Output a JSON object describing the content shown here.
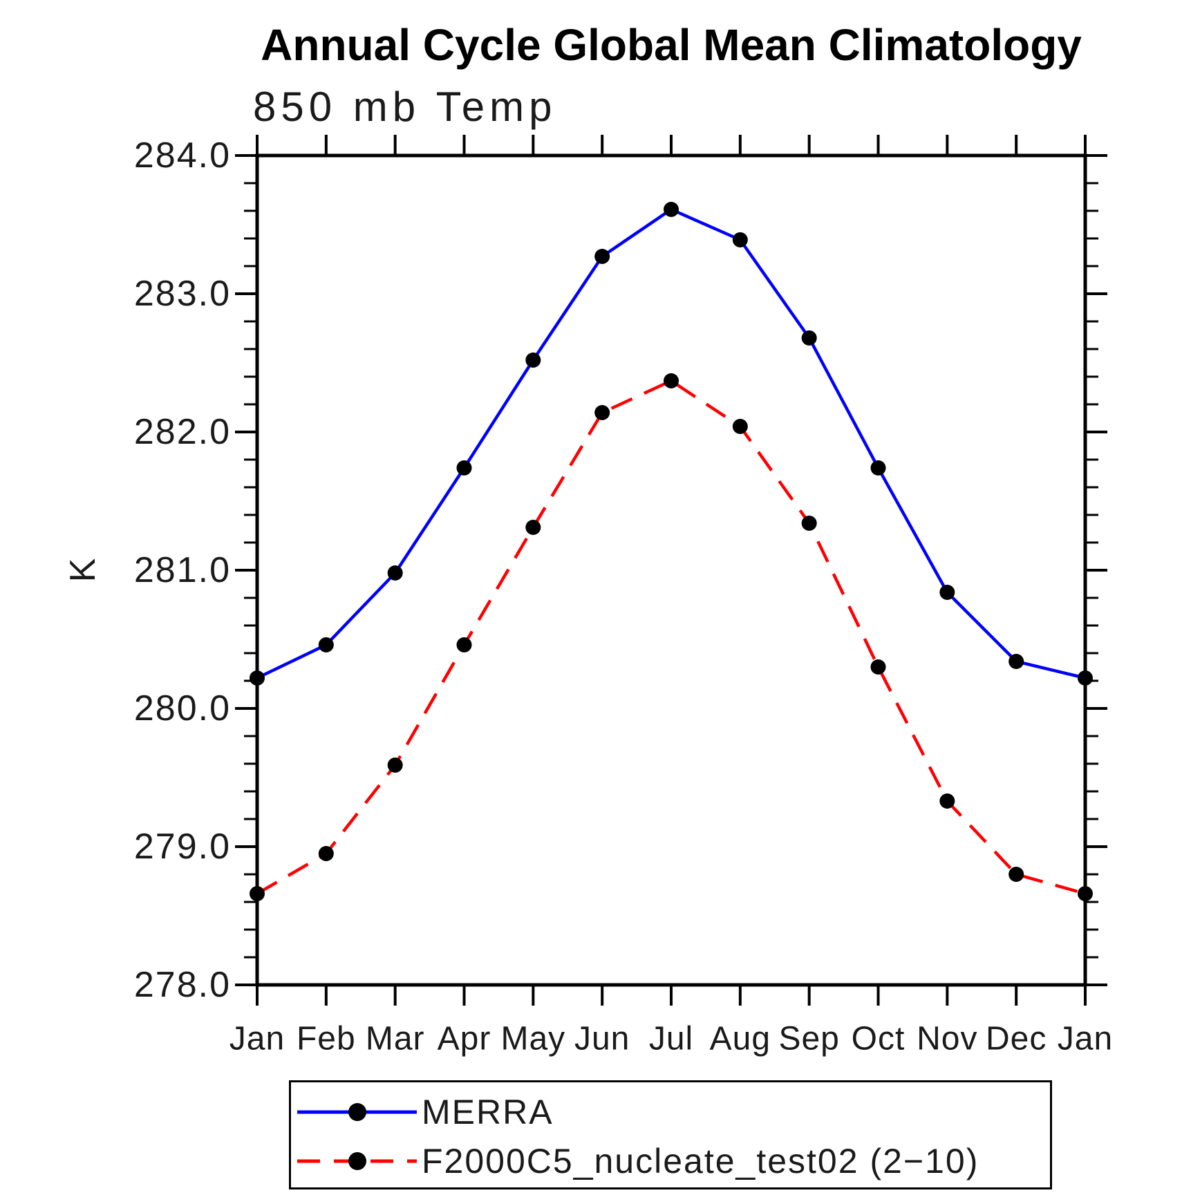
{
  "title": "Annual Cycle Global Mean Climatology",
  "subtitle": "850 mb Temp",
  "y_axis_title": "K",
  "colors": {
    "background": "#ffffff",
    "axis": "#000000",
    "text": "#000000",
    "marker": "#000000",
    "series_merra": "#0000ff",
    "series_f2000c5": "#ff0000"
  },
  "legend": {
    "position": "bottom",
    "items": [
      {
        "label": "MERRA"
      },
      {
        "label": "F2000C5_nucleate_test02 (2−10)"
      }
    ]
  },
  "chart_data": {
    "type": "line",
    "title": "Annual Cycle Global Mean Climatology",
    "subtitle": "850 mb Temp",
    "xlabel": "",
    "ylabel": "K",
    "x_tick_labels": [
      "Jan",
      "Feb",
      "Mar",
      "Apr",
      "May",
      "Jun",
      "Jul",
      "Aug",
      "Sep",
      "Oct",
      "Nov",
      "Dec",
      "Jan"
    ],
    "y_tick_labels": [
      "284.0",
      "283.0",
      "282.0",
      "281.0",
      "280.0",
      "279.0",
      "278.0"
    ],
    "ylim": [
      278.0,
      284.0
    ],
    "y_major_step": 1.0,
    "y_minor_step": 0.2,
    "grid": false,
    "frame": true,
    "legend_position": "bottom",
    "series": [
      {
        "name": "MERRA",
        "color": "#0000ff",
        "line_style": "solid",
        "marker": "circle",
        "marker_color": "#000000",
        "values": [
          280.22,
          280.46,
          280.98,
          281.74,
          282.52,
          283.27,
          283.61,
          283.39,
          282.68,
          281.74,
          280.84,
          280.34,
          280.22
        ]
      },
      {
        "name": "F2000C5_nucleate_test02 (2−10)",
        "color": "#ff0000",
        "line_style": "dashed",
        "marker": "circle",
        "marker_color": "#000000",
        "values": [
          278.66,
          278.95,
          279.59,
          280.46,
          281.31,
          282.14,
          282.37,
          282.04,
          281.34,
          280.3,
          279.33,
          278.8,
          278.66
        ]
      }
    ]
  }
}
